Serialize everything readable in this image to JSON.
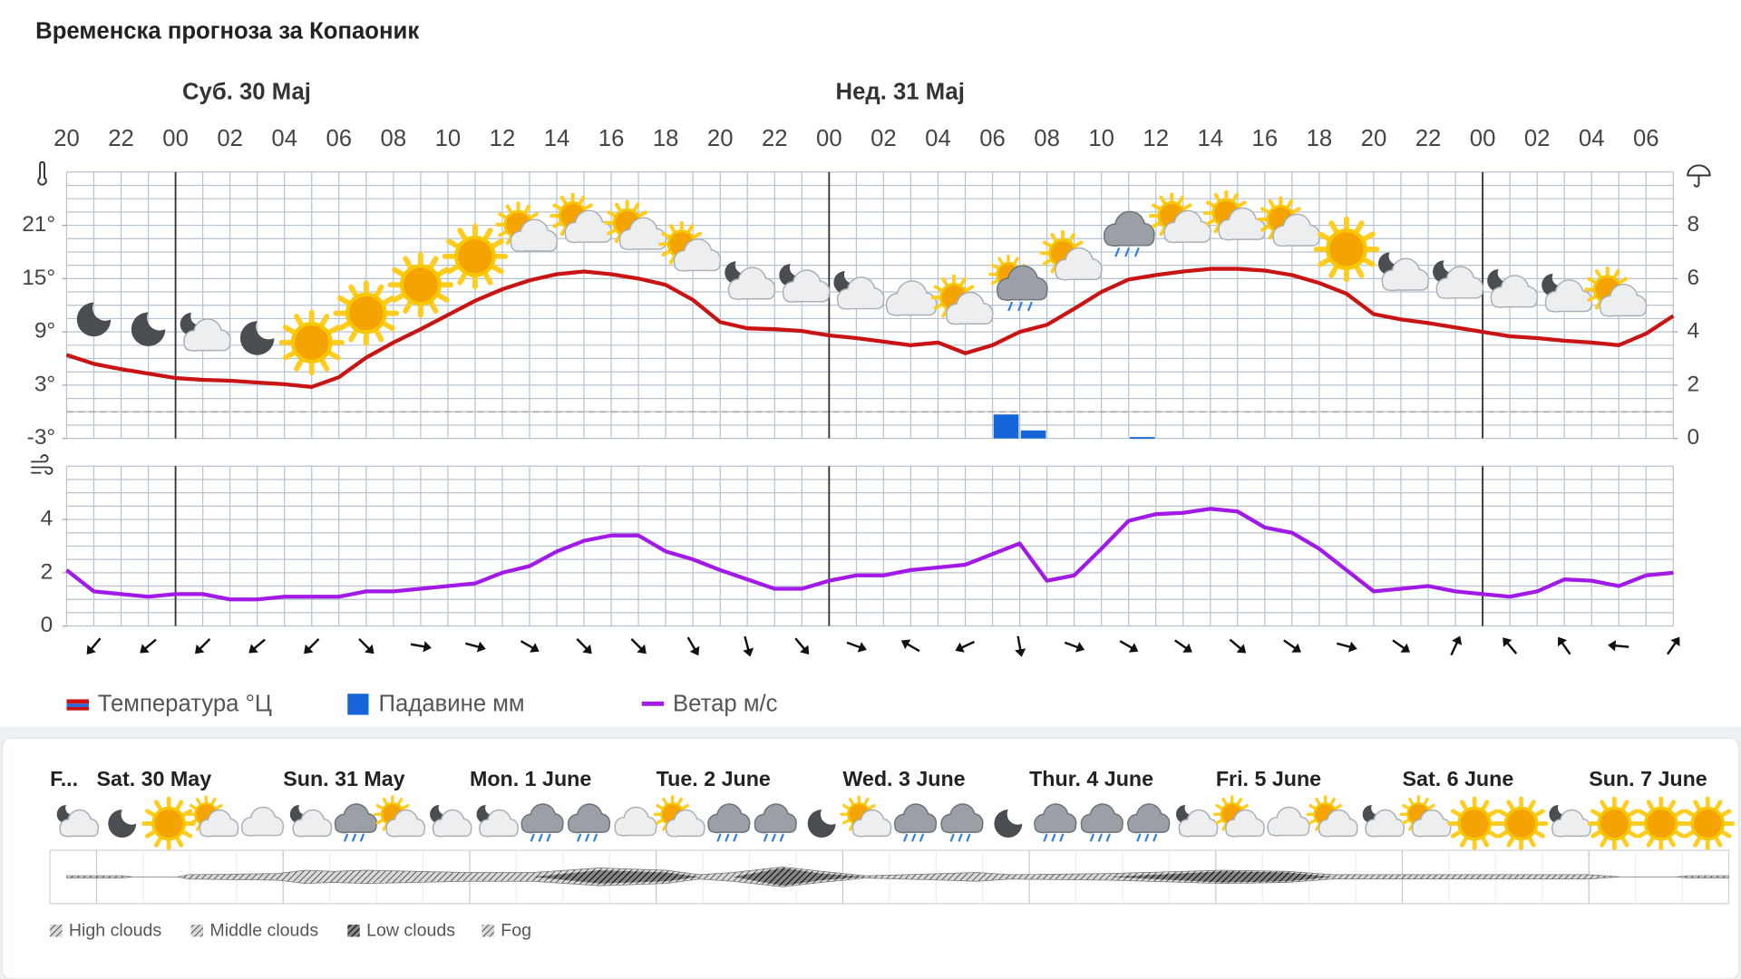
{
  "chart_data": [
    {
      "type": "line",
      "title": "Временска прогноза за Копаоник",
      "day_labels": [
        "Суб. 30 Мај",
        "Нед. 31 Мај"
      ],
      "categories": [
        "20",
        null,
        "22",
        null,
        "00",
        null,
        "02",
        null,
        "04",
        null,
        "06",
        null,
        "08",
        null,
        "10",
        null,
        "12",
        null,
        "14",
        null,
        "16",
        null,
        "18",
        null,
        "20",
        null,
        "22",
        null,
        "00",
        null,
        "02",
        null,
        "04",
        null,
        "06",
        null,
        "08",
        null,
        "10",
        null,
        "12",
        null,
        "14",
        null,
        "16",
        null,
        "18",
        null,
        "20",
        null,
        "22",
        null,
        "00",
        null,
        "02",
        null,
        "04",
        null,
        "06",
        null
      ],
      "series": [
        {
          "name": "Температура °Ц",
          "color": "#c81414",
          "values": [
            6.4,
            5.4,
            4.8,
            4.3,
            3.8,
            3.6,
            3.5,
            3.3,
            3.1,
            2.8,
            3.9,
            6.1,
            7.8,
            9.3,
            10.9,
            12.5,
            13.8,
            14.8,
            15.5,
            15.8,
            15.5,
            15.0,
            14.3,
            12.6,
            10.1,
            9.4,
            9.3,
            9.1,
            8.6,
            8.3,
            7.9,
            7.5,
            7.8,
            6.6,
            7.5,
            9.0,
            9.8,
            11.6,
            13.5,
            14.9,
            15.4,
            15.8,
            16.1,
            16.1,
            15.9,
            15.4,
            14.5,
            13.3,
            11.0,
            10.4,
            10.0,
            9.5,
            9.0,
            8.5,
            8.3,
            8.0,
            7.8,
            7.5,
            8.8,
            10.8
          ]
        },
        {
          "name": "Падавине мм",
          "color": "#1565d8",
          "type": "bar",
          "axis": "y2",
          "values": [
            null,
            null,
            null,
            null,
            null,
            null,
            null,
            null,
            null,
            null,
            null,
            null,
            null,
            null,
            null,
            null,
            null,
            null,
            null,
            null,
            null,
            null,
            null,
            null,
            null,
            null,
            null,
            null,
            null,
            null,
            null,
            null,
            null,
            null,
            0.9,
            0.3,
            null,
            null,
            null,
            0.05,
            null,
            null,
            null,
            null,
            null,
            null,
            null,
            null,
            null,
            null,
            null,
            null,
            null,
            null,
            null,
            null,
            null,
            null,
            null,
            null
          ]
        }
      ],
      "ylim": [
        -3,
        27
      ],
      "yticks": [
        {
          "value": -3,
          "label": "-3°"
        },
        {
          "value": 3,
          "label": "3°"
        },
        {
          "value": 9,
          "label": "9°"
        },
        {
          "value": 15,
          "label": "15°"
        },
        {
          "value": 21,
          "label": "21°"
        }
      ],
      "y2lim": [
        0,
        10
      ],
      "y2ticks": [
        0,
        2,
        4,
        6,
        8
      ],
      "grid": true
    },
    {
      "type": "line",
      "series": [
        {
          "name": "Ветар м/с",
          "color": "#a21ae6",
          "values": [
            2.1,
            1.3,
            1.2,
            1.1,
            1.2,
            1.2,
            1.0,
            1.0,
            1.1,
            1.1,
            1.1,
            1.3,
            1.3,
            1.4,
            1.5,
            1.6,
            2.0,
            2.25,
            2.8,
            3.2,
            3.4,
            3.4,
            2.8,
            2.5,
            2.1,
            1.75,
            1.4,
            1.4,
            1.7,
            1.9,
            1.9,
            2.1,
            2.2,
            2.3,
            2.7,
            3.1,
            1.7,
            1.9,
            2.9,
            3.95,
            4.2,
            4.25,
            4.4,
            4.3,
            3.7,
            3.5,
            2.9,
            2.1,
            1.3,
            1.4,
            1.5,
            1.3,
            1.2,
            1.1,
            1.3,
            1.75,
            1.7,
            1.5,
            1.9,
            2.0
          ]
        }
      ],
      "wind_direction": [
        null,
        40,
        null,
        50,
        null,
        45,
        null,
        50,
        null,
        45,
        null,
        315,
        null,
        280,
        null,
        285,
        null,
        300,
        null,
        315,
        null,
        315,
        null,
        330,
        null,
        345,
        null,
        320,
        null,
        290,
        null,
        120,
        null,
        65,
        null,
        350,
        null,
        290,
        null,
        300,
        null,
        305,
        null,
        310,
        null,
        305,
        null,
        285,
        null,
        305,
        null,
        205,
        null,
        140,
        null,
        145,
        null,
        95,
        null,
        215
      ],
      "ylim": [
        0,
        6
      ],
      "yticks": [
        0,
        2,
        4
      ],
      "grid": true
    }
  ],
  "daily_overview": {
    "days": [
      "F...",
      "Sat. 30 May",
      "Sun. 31 May",
      "Mon. 1 June",
      "Tue. 2 June",
      "Wed. 3 June",
      "Thur. 4 June",
      "Fri. 5 June",
      "Sat. 6 June",
      "Sun. 7 June"
    ],
    "legend": [
      "High clouds",
      "Middle clouds",
      "Low clouds",
      "Fog"
    ]
  }
}
